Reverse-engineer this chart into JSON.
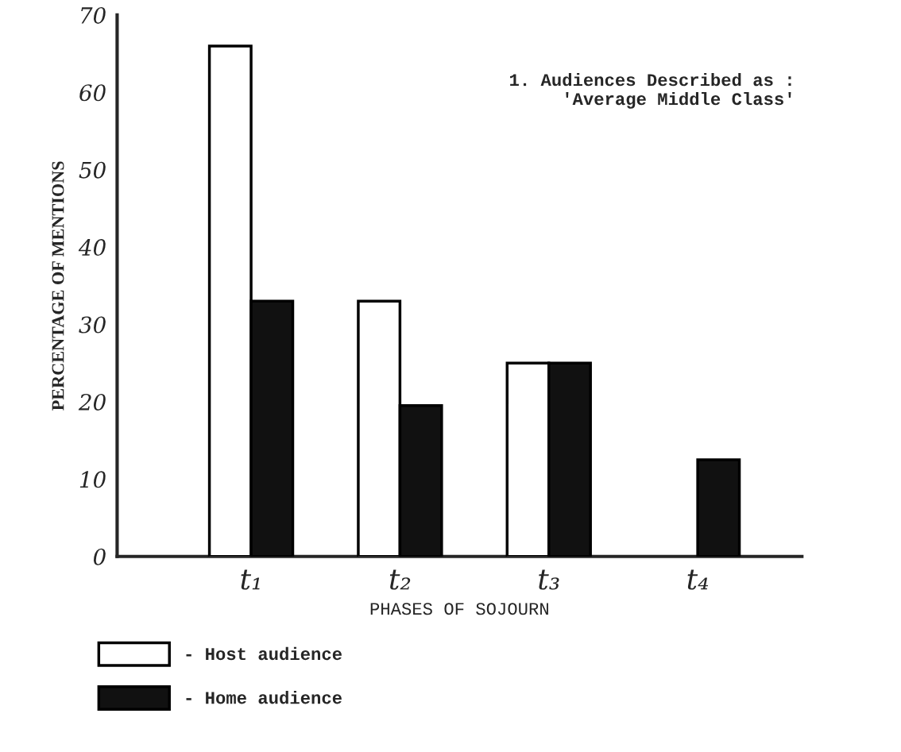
{
  "chart_data": {
    "type": "bar",
    "title": "1. Audiences Described as :\n'Average Middle Class'",
    "xlabel": "PHASES OF SOJOURN",
    "ylabel": "PERCENTAGE OF MENTIONS",
    "categories": [
      "t₁",
      "t₂",
      "t₃",
      "t₄"
    ],
    "series": [
      {
        "name": "- Host audience",
        "color": "#ffffff",
        "values": [
          66,
          33,
          25,
          null
        ]
      },
      {
        "name": "- Home audience",
        "color": "#111111",
        "values": [
          33,
          19.5,
          25,
          12.5
        ]
      }
    ],
    "ylim": [
      0,
      70
    ],
    "yticks": [
      0,
      10,
      20,
      30,
      40,
      50,
      60,
      70
    ],
    "grid": false,
    "legend": "bottom left"
  }
}
